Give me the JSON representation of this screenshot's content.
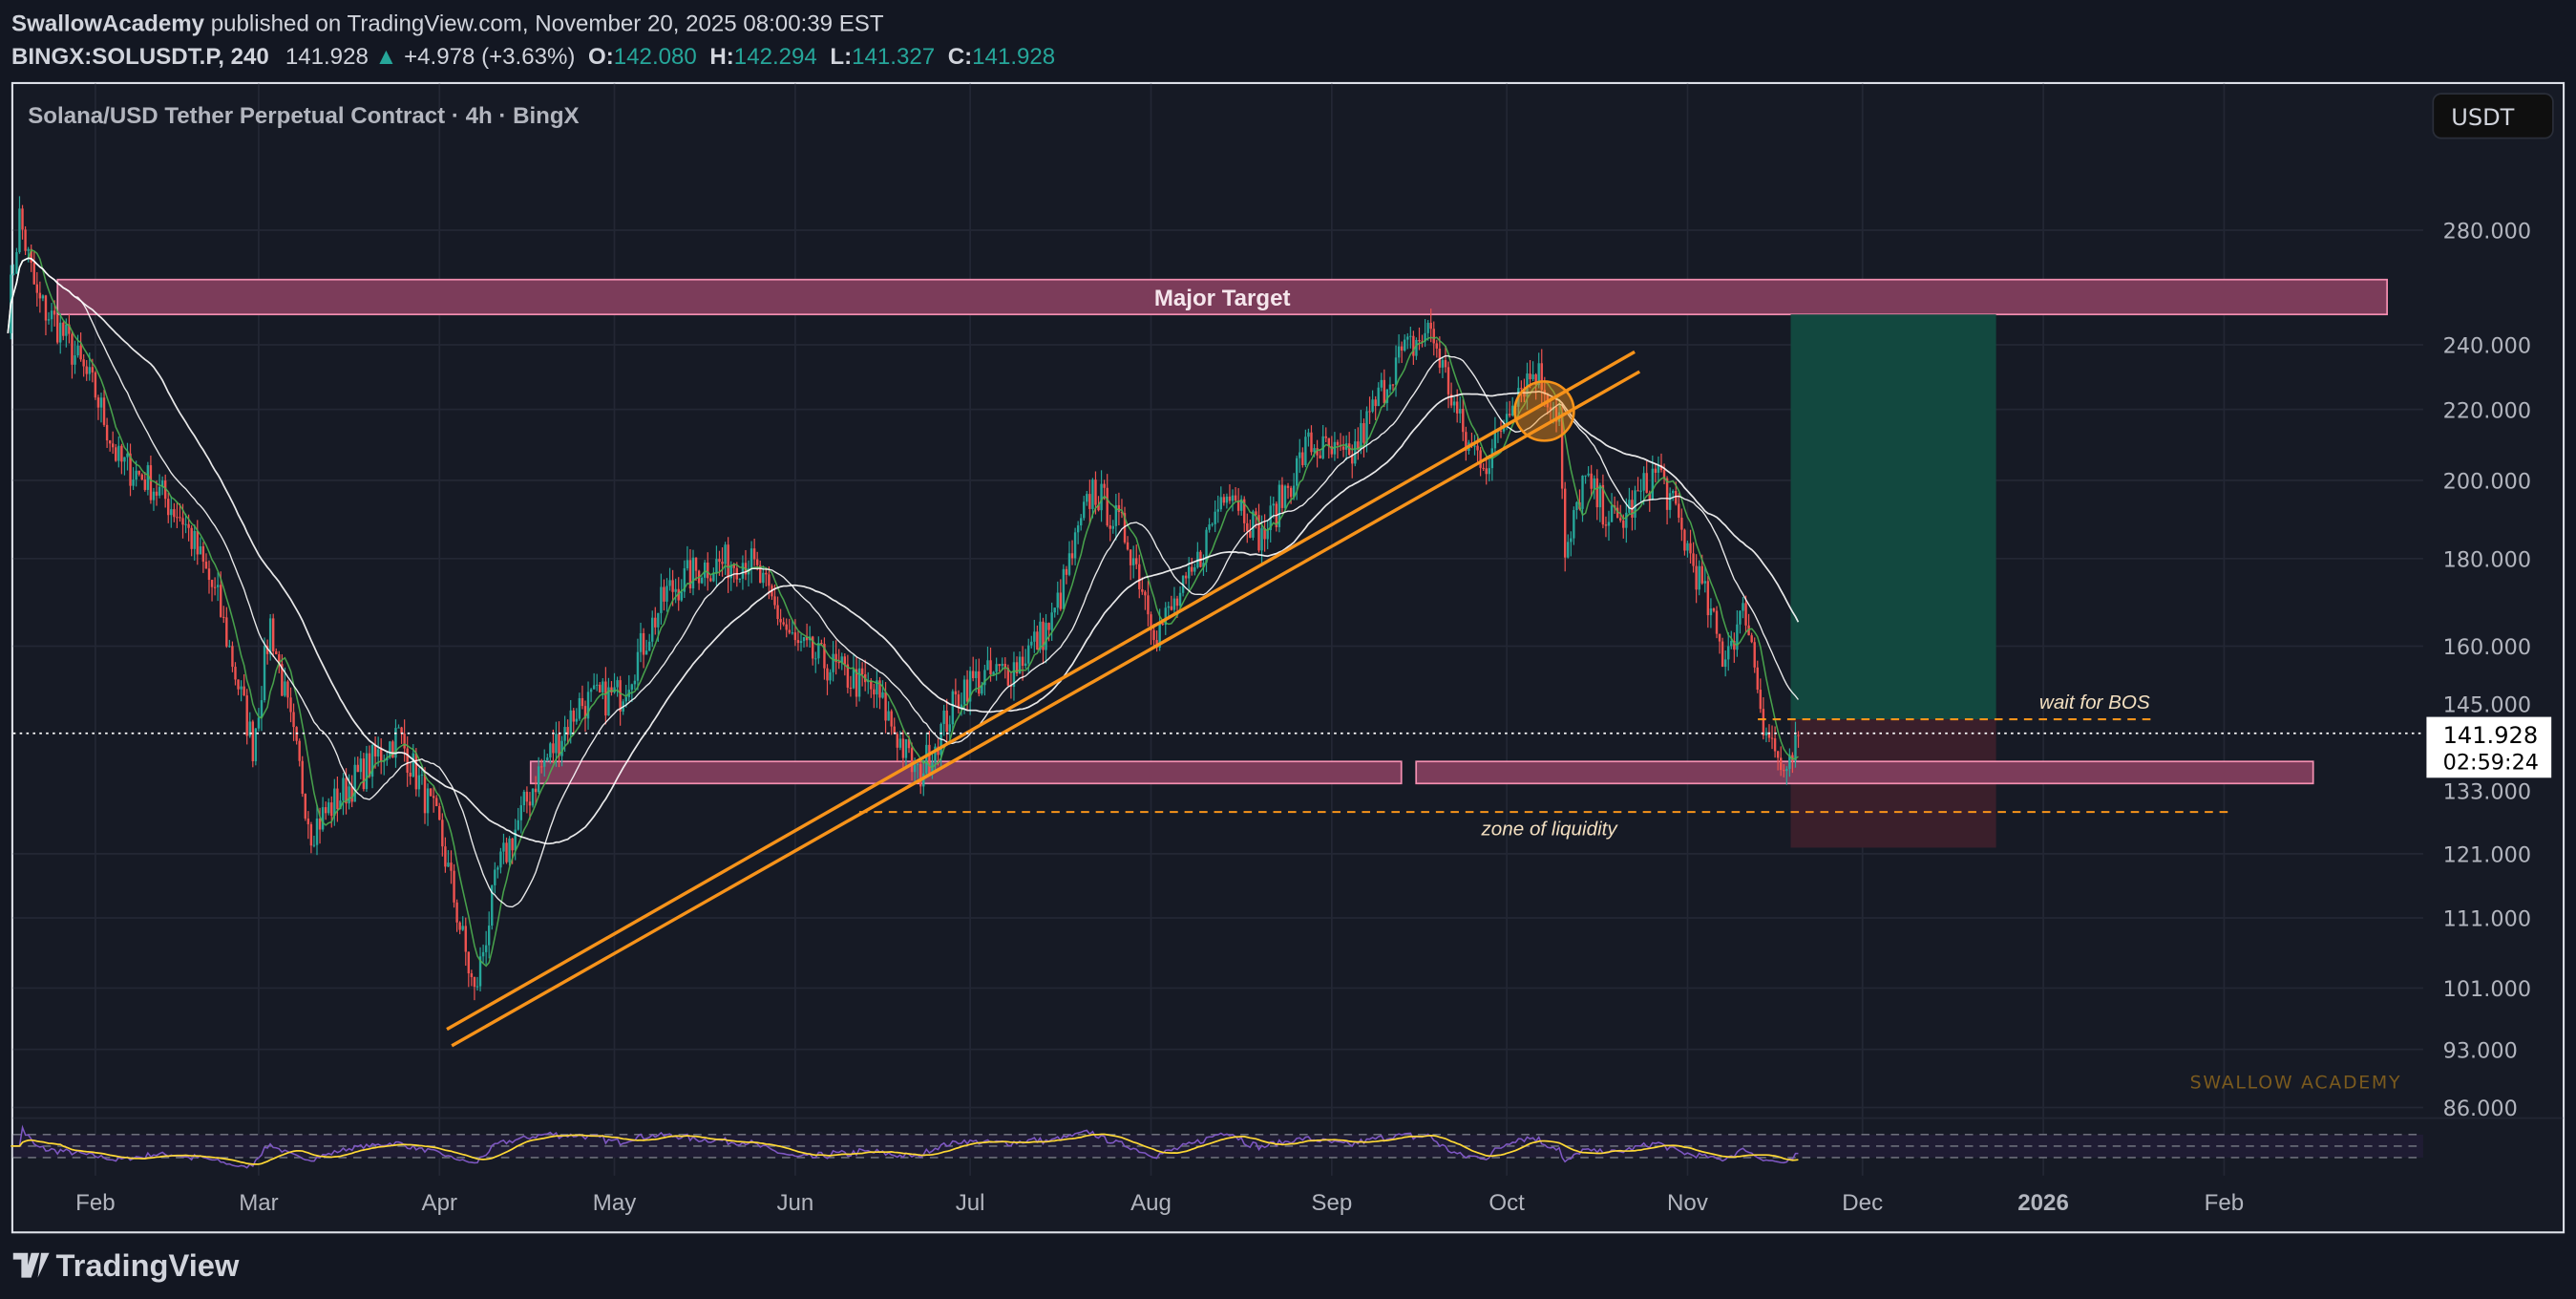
{
  "header": {
    "author": "SwallowAcademy",
    "published": "published on TradingView.com, November 20, 2025 08:00:39 EST",
    "symbol": "BINGX:SOLUSDT.P, 240",
    "last": "141.928",
    "change": "+4.978 (+3.63%)",
    "o_label": "O:",
    "o": "142.080",
    "h_label": "H:",
    "h": "142.294",
    "l_label": "L:",
    "l": "141.327",
    "c_label": "C:",
    "c": "141.928"
  },
  "chart_title": "Solana/USD Tether Perpetual Contract · 4h · BingX",
  "currency_button": "USDT",
  "price_label": {
    "price": "141.928",
    "countdown": "02:59:24"
  },
  "watermark": "SWALLOW ACADEMY",
  "footer_logo": "TradingView",
  "colors": {
    "up": "#26a69a",
    "down": "#ef5350",
    "accent": "#f7931a",
    "zone": "#f48fb1",
    "bg": "#131722"
  },
  "chart_data": {
    "type": "candlestick",
    "title": "Solana/USD Tether Perpetual Contract · 4h · BingX",
    "y_scale": "log",
    "y_ticks": [
      "280.000",
      "240.000",
      "220.000",
      "200.000",
      "180.000",
      "160.000",
      "145.000",
      "133.000",
      "121.000",
      "111.000",
      "101.000",
      "93.000",
      "86.000"
    ],
    "y_tick_values": [
      280,
      240,
      220,
      200,
      180,
      160,
      145,
      133,
      121,
      111,
      101,
      93,
      86
    ],
    "x_ticks": [
      "Feb",
      "Mar",
      "Apr",
      "May",
      "Jun",
      "Jul",
      "Aug",
      "Sep",
      "Oct",
      "Nov",
      "Dec",
      "2026",
      "Feb"
    ],
    "x_tick_dates": [
      "2025-02-01",
      "2025-03-01",
      "2025-04-01",
      "2025-05-01",
      "2025-06-01",
      "2025-07-01",
      "2025-08-01",
      "2025-09-01",
      "2025-10-01",
      "2025-11-01",
      "2025-12-01",
      "2026-01-01",
      "2026-02-01"
    ],
    "price_path": [
      [
        "2025-01-17",
        250
      ],
      [
        "2025-01-19",
        285
      ],
      [
        "2025-01-22",
        255
      ],
      [
        "2025-01-26",
        245
      ],
      [
        "2025-02-01",
        225
      ],
      [
        "2025-02-05",
        205
      ],
      [
        "2025-02-10",
        200
      ],
      [
        "2025-02-16",
        190
      ],
      [
        "2025-02-22",
        170
      ],
      [
        "2025-02-28",
        140
      ],
      [
        "2025-03-03",
        165
      ],
      [
        "2025-03-10",
        125
      ],
      [
        "2025-03-16",
        132
      ],
      [
        "2025-03-25",
        142
      ],
      [
        "2025-04-01",
        125
      ],
      [
        "2025-04-07",
        100
      ],
      [
        "2025-04-11",
        118
      ],
      [
        "2025-04-18",
        135
      ],
      [
        "2025-04-25",
        148
      ],
      [
        "2025-05-02",
        150
      ],
      [
        "2025-05-10",
        172
      ],
      [
        "2025-05-16",
        178
      ],
      [
        "2025-05-24",
        180
      ],
      [
        "2025-06-01",
        160
      ],
      [
        "2025-06-08",
        155
      ],
      [
        "2025-06-15",
        150
      ],
      [
        "2025-06-22",
        134
      ],
      [
        "2025-06-30",
        152
      ],
      [
        "2025-07-08",
        155
      ],
      [
        "2025-07-15",
        165
      ],
      [
        "2025-07-22",
        198
      ],
      [
        "2025-07-28",
        185
      ],
      [
        "2025-08-02",
        163
      ],
      [
        "2025-08-08",
        175
      ],
      [
        "2025-08-14",
        200
      ],
      [
        "2025-08-20",
        185
      ],
      [
        "2025-08-28",
        210
      ],
      [
        "2025-09-04",
        205
      ],
      [
        "2025-09-12",
        235
      ],
      [
        "2025-09-18",
        245
      ],
      [
        "2025-09-24",
        210
      ],
      [
        "2025-09-28",
        205
      ],
      [
        "2025-10-02",
        225
      ],
      [
        "2025-10-06",
        232
      ],
      [
        "2025-10-10",
        218
      ],
      [
        "2025-10-11",
        178
      ],
      [
        "2025-10-14",
        200
      ],
      [
        "2025-10-20",
        188
      ],
      [
        "2025-10-27",
        203
      ],
      [
        "2025-11-03",
        175
      ],
      [
        "2025-11-07",
        158
      ],
      [
        "2025-11-11",
        168
      ],
      [
        "2025-11-14",
        145
      ],
      [
        "2025-11-18",
        133
      ],
      [
        "2025-11-20",
        141.928
      ]
    ],
    "moving_averages": [
      "MA fast (green)",
      "MA mid (white)",
      "MA slow (white)"
    ],
    "indicator": {
      "name": "RSI",
      "levels": [
        70,
        50,
        30
      ]
    },
    "annotations": {
      "major_target": {
        "label": "Major Target",
        "from": 250,
        "to": 262
      },
      "demand_zone": {
        "from": 133,
        "to": 137
      },
      "zone_of_liquidity": {
        "label": "zone of liquidity",
        "price": 128
      },
      "wait_for_bos": {
        "label": "wait for BOS",
        "price": 145
      },
      "long_position": {
        "entry": 145,
        "target": 250,
        "stop": 122
      }
    }
  }
}
